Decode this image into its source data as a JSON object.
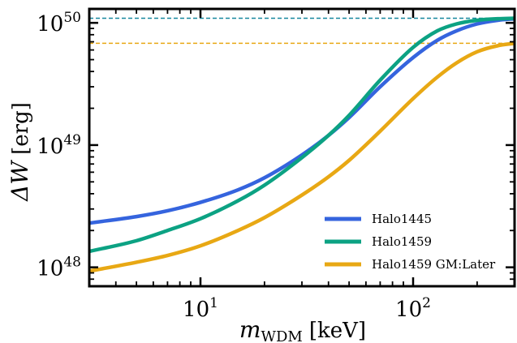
{
  "chart_data": {
    "type": "line",
    "x_scale": "log",
    "y_scale": "log",
    "xlim": [
      3,
      300
    ],
    "ylim": [
      7e+47,
      1.3e+50
    ],
    "xlabel": {
      "main": "m",
      "sub": "WDM",
      "unit": "[keV]"
    },
    "ylabel": {
      "main": "ΔW",
      "unit": "[erg]"
    },
    "x_ticks": [
      {
        "value": 10,
        "base": "10",
        "exp": "1"
      },
      {
        "value": 100,
        "base": "10",
        "exp": "2"
      }
    ],
    "y_ticks": [
      {
        "value": 1e+48,
        "base": "10",
        "exp": "48"
      },
      {
        "value": 1e+49,
        "base": "10",
        "exp": "49"
      },
      {
        "value": 1e+50,
        "base": "10",
        "exp": "50"
      }
    ],
    "grid": false,
    "legend_position": "bottom-right",
    "series": [
      {
        "name": "Halo1445",
        "color": "#3564DE",
        "x": [
          3,
          5,
          7,
          10,
          15,
          20,
          30,
          40,
          50,
          70,
          100,
          130,
          160,
          200,
          250,
          300
        ],
        "y": [
          2.3e+48,
          2.6e+48,
          2.9e+48,
          3.4e+48,
          4.3e+48,
          5.4e+48,
          8.3e+48,
          1.2e+49,
          1.68e+49,
          3e+49,
          5.2e+49,
          7.2e+49,
          8.6e+49,
          9.8e+49,
          1.05e+50,
          1.08e+50
        ]
      },
      {
        "name": "Halo1459",
        "color": "#0CA283",
        "x": [
          3,
          5,
          7,
          10,
          15,
          20,
          30,
          40,
          50,
          70,
          100,
          130,
          160,
          200,
          250,
          300
        ],
        "y": [
          1.35e+48,
          1.65e+48,
          2e+48,
          2.5e+48,
          3.5e+48,
          4.7e+48,
          7.9e+48,
          1.2e+49,
          1.75e+49,
          3.4e+49,
          6.3e+49,
          8.6e+49,
          9.8e+49,
          1.05e+50,
          1.08e+50,
          1.09e+50
        ]
      },
      {
        "name": "Halo1459 GM:Later",
        "color": "#E8A814",
        "x": [
          3,
          5,
          7,
          10,
          15,
          20,
          30,
          40,
          50,
          70,
          100,
          130,
          160,
          200,
          250,
          300
        ],
        "y": [
          9.3e+47,
          1.1e+48,
          1.25e+48,
          1.5e+48,
          2e+48,
          2.55e+48,
          3.9e+48,
          5.5e+48,
          7.5e+48,
          1.3e+49,
          2.4e+49,
          3.6e+49,
          4.7e+49,
          5.8e+49,
          6.5e+49,
          6.8e+49
        ]
      }
    ],
    "reference_lines": [
      {
        "y": 1.09e+50,
        "color": "#17889F",
        "style": "dashed"
      },
      {
        "y": 6.8e+49,
        "color": "#E8A814",
        "style": "dashed"
      }
    ]
  }
}
